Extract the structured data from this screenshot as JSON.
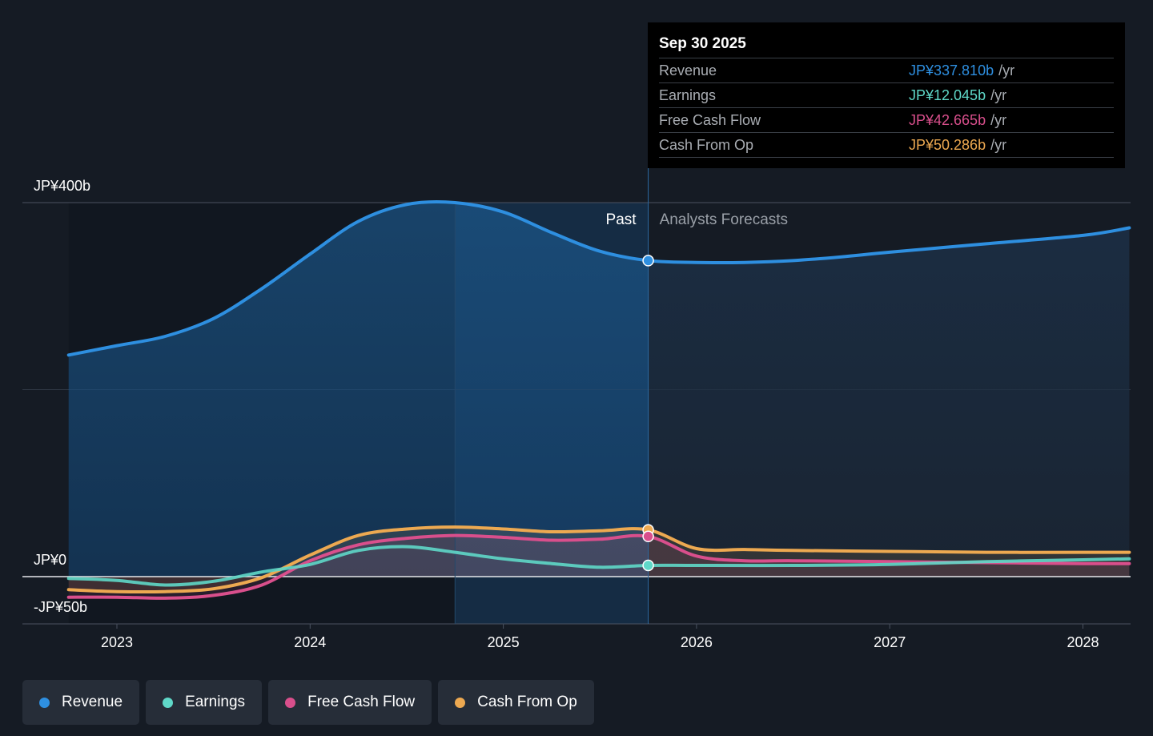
{
  "chart_data": {
    "type": "line",
    "y_unit": "JP¥ billions",
    "ylim": [
      -50,
      400
    ],
    "y_ticks": [
      {
        "value": 400,
        "label": "JP¥400b"
      },
      {
        "value": 0,
        "label": "JP¥0"
      },
      {
        "value": -50,
        "label": "-JP¥50b"
      }
    ],
    "x_ticks": [
      {
        "value": 2023.0,
        "label": "2023"
      },
      {
        "value": 2024.0,
        "label": "2024"
      },
      {
        "value": 2025.0,
        "label": "2025"
      },
      {
        "value": 2026.0,
        "label": "2026"
      },
      {
        "value": 2027.0,
        "label": "2027"
      },
      {
        "value": 2028.0,
        "label": "2028"
      }
    ],
    "xlim": [
      2022.51,
      2028.24
    ],
    "past_start": 2024.75,
    "divider": 2025.75,
    "region_labels": {
      "past": "Past",
      "forecast": "Analysts Forecasts"
    },
    "series": [
      {
        "name": "Revenue",
        "color": "#2e8fe0",
        "points": [
          [
            2022.75,
            237
          ],
          [
            2023.0,
            247
          ],
          [
            2023.25,
            257
          ],
          [
            2023.5,
            276
          ],
          [
            2023.75,
            308
          ],
          [
            2024.0,
            345
          ],
          [
            2024.25,
            380
          ],
          [
            2024.5,
            398
          ],
          [
            2024.75,
            400
          ],
          [
            2025.0,
            390
          ],
          [
            2025.25,
            368
          ],
          [
            2025.5,
            348
          ],
          [
            2025.75,
            338
          ],
          [
            2026.0,
            336
          ],
          [
            2026.25,
            336
          ],
          [
            2026.5,
            338
          ],
          [
            2026.75,
            342
          ],
          [
            2027.0,
            347
          ],
          [
            2027.5,
            356
          ],
          [
            2028.0,
            365
          ],
          [
            2028.24,
            373
          ]
        ]
      },
      {
        "name": "Earnings",
        "color": "#5fd8c8",
        "points": [
          [
            2022.75,
            -2
          ],
          [
            2023.0,
            -4
          ],
          [
            2023.25,
            -9
          ],
          [
            2023.5,
            -5
          ],
          [
            2023.75,
            5
          ],
          [
            2024.0,
            13
          ],
          [
            2024.25,
            28
          ],
          [
            2024.5,
            32
          ],
          [
            2024.75,
            26
          ],
          [
            2025.0,
            19
          ],
          [
            2025.25,
            14
          ],
          [
            2025.5,
            10
          ],
          [
            2025.75,
            12
          ],
          [
            2026.0,
            12
          ],
          [
            2026.5,
            12
          ],
          [
            2027.0,
            13
          ],
          [
            2027.5,
            16
          ],
          [
            2028.0,
            18
          ],
          [
            2028.24,
            19
          ]
        ]
      },
      {
        "name": "Free Cash Flow",
        "color": "#d94f8c",
        "points": [
          [
            2022.75,
            -22
          ],
          [
            2023.0,
            -22
          ],
          [
            2023.25,
            -23
          ],
          [
            2023.5,
            -20
          ],
          [
            2023.75,
            -9
          ],
          [
            2024.0,
            17
          ],
          [
            2024.25,
            34
          ],
          [
            2024.5,
            41
          ],
          [
            2024.75,
            44
          ],
          [
            2025.0,
            42
          ],
          [
            2025.25,
            39
          ],
          [
            2025.5,
            40
          ],
          [
            2025.75,
            43
          ],
          [
            2026.0,
            22
          ],
          [
            2026.25,
            17
          ],
          [
            2026.5,
            17
          ],
          [
            2027.0,
            16
          ],
          [
            2027.5,
            15
          ],
          [
            2028.0,
            14
          ],
          [
            2028.24,
            14
          ]
        ]
      },
      {
        "name": "Cash From Op",
        "color": "#eda951",
        "points": [
          [
            2022.75,
            -14
          ],
          [
            2023.0,
            -16
          ],
          [
            2023.25,
            -16
          ],
          [
            2023.5,
            -13
          ],
          [
            2023.75,
            -1
          ],
          [
            2024.0,
            23
          ],
          [
            2024.25,
            44
          ],
          [
            2024.5,
            51
          ],
          [
            2024.75,
            53
          ],
          [
            2025.0,
            51
          ],
          [
            2025.25,
            48
          ],
          [
            2025.5,
            49
          ],
          [
            2025.75,
            50
          ],
          [
            2026.0,
            30
          ],
          [
            2026.25,
            29
          ],
          [
            2026.5,
            28
          ],
          [
            2027.0,
            27
          ],
          [
            2027.5,
            26
          ],
          [
            2028.0,
            26
          ],
          [
            2028.24,
            26
          ]
        ]
      }
    ]
  },
  "tooltip": {
    "date": "Sep 30 2025",
    "unit": "/yr",
    "rows": [
      {
        "name": "Revenue",
        "value": "JP¥337.810b",
        "color": "#2e8fe0"
      },
      {
        "name": "Earnings",
        "value": "JP¥12.045b",
        "color": "#5fd8c8"
      },
      {
        "name": "Free Cash Flow",
        "value": "JP¥42.665b",
        "color": "#d94f8c"
      },
      {
        "name": "Cash From Op",
        "value": "JP¥50.286b",
        "color": "#eda951"
      }
    ]
  },
  "legend": [
    {
      "label": "Revenue",
      "color": "#2e8fe0"
    },
    {
      "label": "Earnings",
      "color": "#5fd8c8"
    },
    {
      "label": "Free Cash Flow",
      "color": "#d94f8c"
    },
    {
      "label": "Cash From Op",
      "color": "#eda951"
    }
  ]
}
